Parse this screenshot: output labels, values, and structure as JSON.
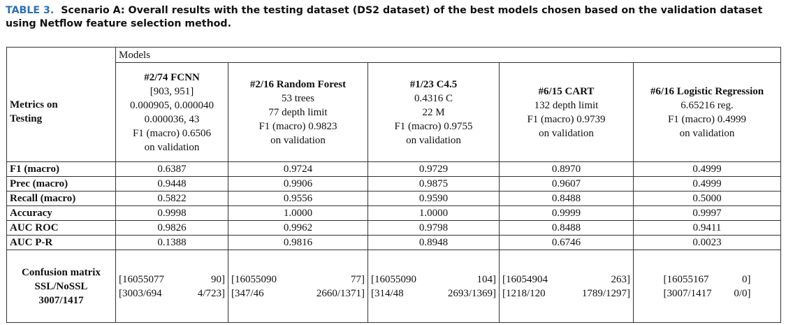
{
  "caption": {
    "label": "TABLE 3.",
    "text": "Scenario A: Overall results with the testing dataset (DS2 dataset) of the best models chosen based on the validation dataset using Netflow feature selection method."
  },
  "table": {
    "models_header": "Models",
    "row_header_label": [
      "Metrics on",
      "Testing"
    ],
    "models": [
      {
        "name": "#2/74 FCNN",
        "details": [
          "[903, 951]",
          "0.000905, 0.000040",
          "0.000036, 43",
          "F1 (macro) 0.6506",
          "on validation"
        ]
      },
      {
        "name": "#2/16 Random Forest",
        "details": [
          "53 trees",
          "77 depth limit",
          "F1 (macro) 0.9823",
          "on validation"
        ]
      },
      {
        "name": "#1/23 C4.5",
        "details": [
          "0.4316 C",
          "22 M",
          "F1 (macro) 0.9755",
          "on validation"
        ]
      },
      {
        "name": "#6/15 CART",
        "details": [
          "132 depth limit",
          "F1 (macro) 0.9739",
          "on validation"
        ]
      },
      {
        "name": "#6/16 Logistic Regression",
        "details": [
          "6.65216 reg.",
          "F1 (macro) 0.4999",
          "on validation"
        ]
      }
    ],
    "metrics": [
      {
        "name": "F1 (macro)",
        "values": [
          "0.6387",
          "0.9724",
          "0.9729",
          "0.8970",
          "0.4999"
        ]
      },
      {
        "name": "Prec (macro)",
        "values": [
          "0.9448",
          "0.9906",
          "0.9875",
          "0.9607",
          "0.4999"
        ]
      },
      {
        "name": "Recall (macro)",
        "values": [
          "0.5822",
          "0.9556",
          "0.9590",
          "0.8488",
          "0.5000"
        ]
      },
      {
        "name": "Accuracy",
        "values": [
          "0.9998",
          "1.0000",
          "1.0000",
          "0.9999",
          "0.9997"
        ]
      },
      {
        "name": "AUC ROC",
        "values": [
          "0.9826",
          "0.9962",
          "0.9798",
          "0.8488",
          "0.9411"
        ]
      },
      {
        "name": "AUC P-R",
        "values": [
          "0.1388",
          "0.9816",
          "0.8948",
          "0.6746",
          "0.0023"
        ]
      }
    ],
    "confusion_label": [
      "Confusion matrix",
      "SSL/NoSSL",
      "3007/1417"
    ],
    "confusion": [
      [
        [
          "[16055077",
          "90]"
        ],
        [
          "[3003/694",
          "4/723]"
        ]
      ],
      [
        [
          "[16055090",
          "77]"
        ],
        [
          "[347/46",
          "2660/1371]"
        ]
      ],
      [
        [
          "[16055090",
          "104]"
        ],
        [
          "[314/48",
          "2693/1369]"
        ]
      ],
      [
        [
          "[16054904",
          "263]"
        ],
        [
          "[1218/120",
          "1789/1297]"
        ]
      ],
      [
        [
          "[16055167",
          "0]"
        ],
        [
          "[3007/1417",
          "0/0]"
        ]
      ]
    ]
  }
}
